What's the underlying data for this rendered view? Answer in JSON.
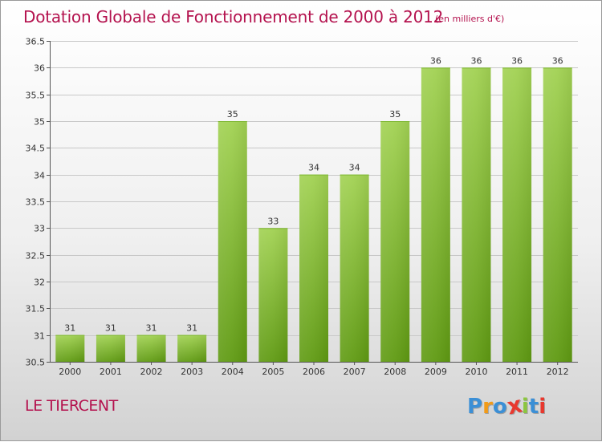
{
  "header": {
    "title": "Dotation Globale de Fonctionnement de 2000 à 2012",
    "subtitle": "(en milliers d'€)"
  },
  "footer": {
    "commune": "LE TIERCENT",
    "logo_letters": [
      "P",
      "r",
      "o",
      "x",
      "i",
      "t",
      "i"
    ],
    "logo_colors": [
      "#3b8fd6",
      "#f29b18",
      "#3b8fd6",
      "#e8382e",
      "#8cc63f",
      "#3b8fd6",
      "#e8382e"
    ]
  },
  "colors": {
    "bar_top": "#a2d253",
    "bar_bottom": "#5f9a12",
    "grid": "#c8c8c8",
    "axis": "#555555",
    "title": "#b4124e"
  },
  "chart_data": {
    "type": "bar",
    "title": "Dotation Globale de Fonctionnement de 2000 à 2012",
    "subtitle": "(en milliers d'€)",
    "xlabel": "",
    "ylabel": "",
    "categories": [
      "2000",
      "2001",
      "2002",
      "2003",
      "2004",
      "2005",
      "2006",
      "2007",
      "2008",
      "2009",
      "2010",
      "2011",
      "2012"
    ],
    "values": [
      31,
      31,
      31,
      31,
      35,
      33,
      34,
      34,
      35,
      36,
      36,
      36,
      36
    ],
    "ylim": [
      30.5,
      36.5
    ],
    "yticks": [
      30.5,
      31,
      31.5,
      32,
      32.5,
      33,
      33.5,
      34,
      34.5,
      35,
      35.5,
      36,
      36.5
    ],
    "grid": true,
    "legend": "none"
  }
}
